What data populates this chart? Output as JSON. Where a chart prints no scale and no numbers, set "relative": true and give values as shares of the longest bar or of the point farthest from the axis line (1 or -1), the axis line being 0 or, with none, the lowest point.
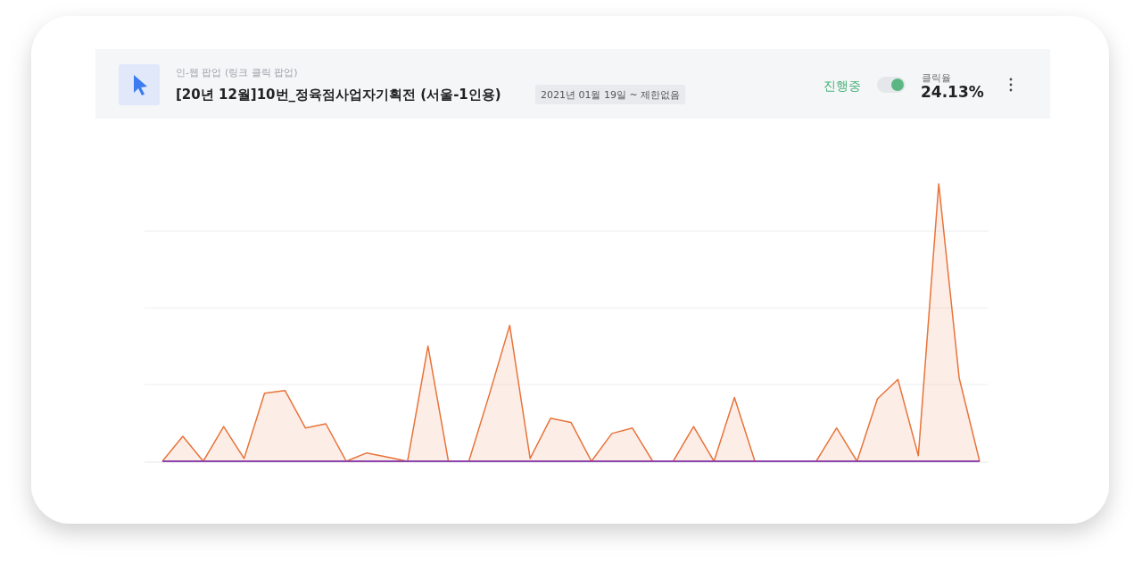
{
  "chart_data": {
    "type": "area",
    "relative": true,
    "grid": "y",
    "marker": "none",
    "subtitle": "인-웹 팝업 (링크 클릭 팝업)",
    "title": "[20년 12월]10번_정육점사업자기획전 (서울-1인용)",
    "annotations": [
      "2021년 01월 19일 ~ 제한없음",
      "진행중",
      "클릭율",
      "24.13%"
    ],
    "categories": [
      null,
      null,
      null,
      null,
      null,
      null,
      null,
      null,
      null,
      null,
      null,
      null,
      null,
      null,
      null,
      null,
      null,
      null,
      null,
      null,
      null,
      null,
      null,
      null,
      null,
      null,
      null,
      null,
      null,
      null,
      null,
      null,
      null,
      null,
      null,
      null,
      null,
      null,
      null,
      null,
      null
    ],
    "series": [
      {
        "color": "#e8733a",
        "values": [
          0,
          0.09,
          0,
          0.125,
          0.01,
          0.245,
          0.255,
          0.12,
          0.135,
          0,
          0.03,
          0.015,
          0,
          0.415,
          0,
          0,
          0.24,
          0.49,
          0.01,
          0.155,
          0.14,
          0,
          0.1,
          0.12,
          0,
          0,
          0.125,
          0,
          0.23,
          0,
          0,
          0,
          0,
          0.12,
          0,
          0.225,
          0.295,
          0.02,
          1,
          0.3,
          0
        ]
      },
      {
        "color": "#8e44ad",
        "type": "line",
        "values": [
          0,
          0,
          0,
          0,
          0,
          0,
          0,
          0,
          0,
          0,
          0,
          0,
          0,
          0,
          0,
          0,
          0,
          0,
          0,
          0,
          0,
          0,
          0,
          0,
          0,
          0,
          0,
          0,
          0,
          0,
          0,
          0,
          0,
          0,
          0,
          0,
          0,
          0,
          0,
          0,
          0
        ]
      }
    ]
  }
}
